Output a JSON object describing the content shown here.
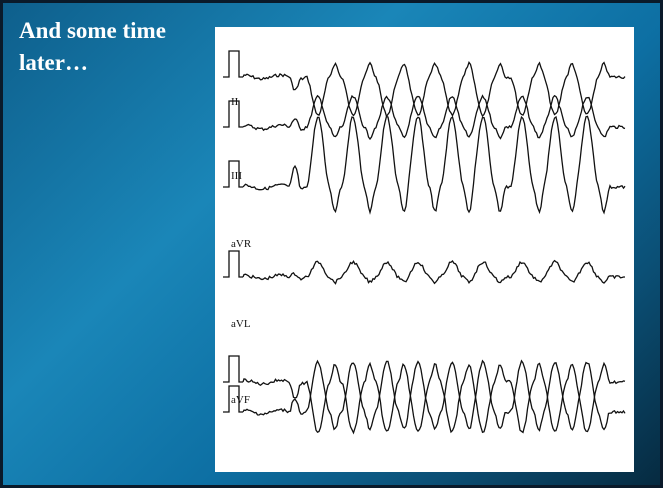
{
  "slide": {
    "title": "And some time later…",
    "leads": [
      "II",
      "III",
      "aVR",
      "aVL",
      "aVF"
    ]
  }
}
